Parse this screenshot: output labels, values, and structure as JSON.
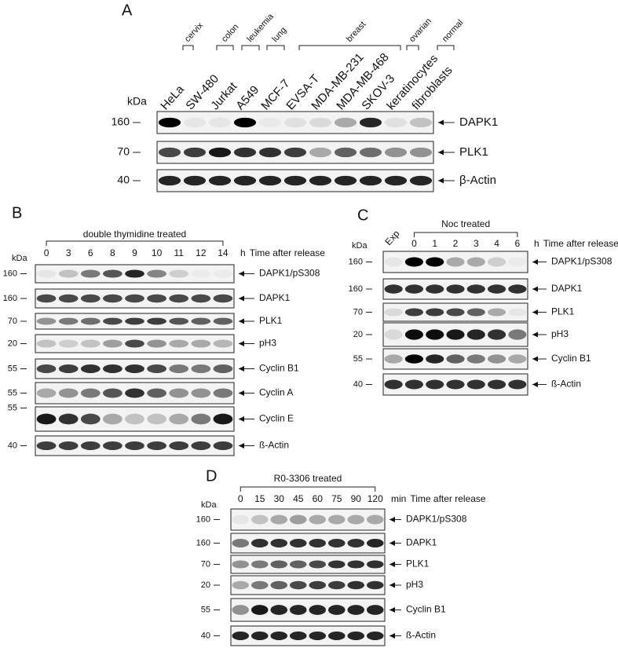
{
  "panels": [
    {
      "label": "A",
      "kda": "kDa",
      "tissues": [
        "cervix",
        "colon",
        "leukemia",
        "lung",
        "breast",
        "ovarian",
        "normal"
      ],
      "lanes": [
        "HeLa",
        "SW-480",
        "Jurkat",
        "A549",
        "MCF-7",
        "EVSA-T",
        "MDA-MB-231",
        "MDA-MB-468",
        "SKOV-3",
        "keratinocytes",
        "fibroblasts"
      ],
      "markers": [
        "160",
        "70",
        "40"
      ],
      "blots": [
        "DAPK1",
        "PLK1",
        "β-Actin"
      ]
    },
    {
      "label": "B",
      "kda": "kDa",
      "treatment": "double thymidine treated",
      "lanes": [
        "0",
        "3",
        "6",
        "8",
        "9",
        "10",
        "11",
        "12",
        "14"
      ],
      "unit": "h",
      "time_label": "Time after release",
      "markers": [
        "160",
        "160",
        "70",
        "20",
        "55",
        "55",
        "55",
        "40"
      ],
      "blots": [
        "DAPK1/pS308",
        "DAPK1",
        "PLK1",
        "pH3",
        "Cyclin B1",
        "Cyclin A",
        "Cyclin E",
        "ß-Actin"
      ]
    },
    {
      "label": "C",
      "kda": "kDa",
      "treatment": "Noc treated",
      "lanes": [
        "Exp",
        "0",
        "1",
        "2",
        "3",
        "4",
        "6"
      ],
      "unit": "h",
      "time_label": "Time after release",
      "markers": [
        "160",
        "160",
        "70",
        "20",
        "55",
        "40"
      ],
      "blots": [
        "DAPK1/pS308",
        "DAPK1",
        "PLK1",
        "pH3",
        "Cyclin B1",
        "ß-Actin"
      ]
    },
    {
      "label": "D",
      "kda": "kDa",
      "treatment": "R0-3306 treated",
      "lanes": [
        "0",
        "15",
        "30",
        "45",
        "60",
        "75",
        "90",
        "120"
      ],
      "unit": "min",
      "time_label": "Time after release",
      "markers": [
        "160",
        "160",
        "70",
        "20",
        "55",
        "40"
      ],
      "blots": [
        "DAPK1/pS308",
        "DAPK1",
        "PLK1",
        "pH3",
        "Cyclin B1",
        "ß-Actin"
      ]
    }
  ]
}
